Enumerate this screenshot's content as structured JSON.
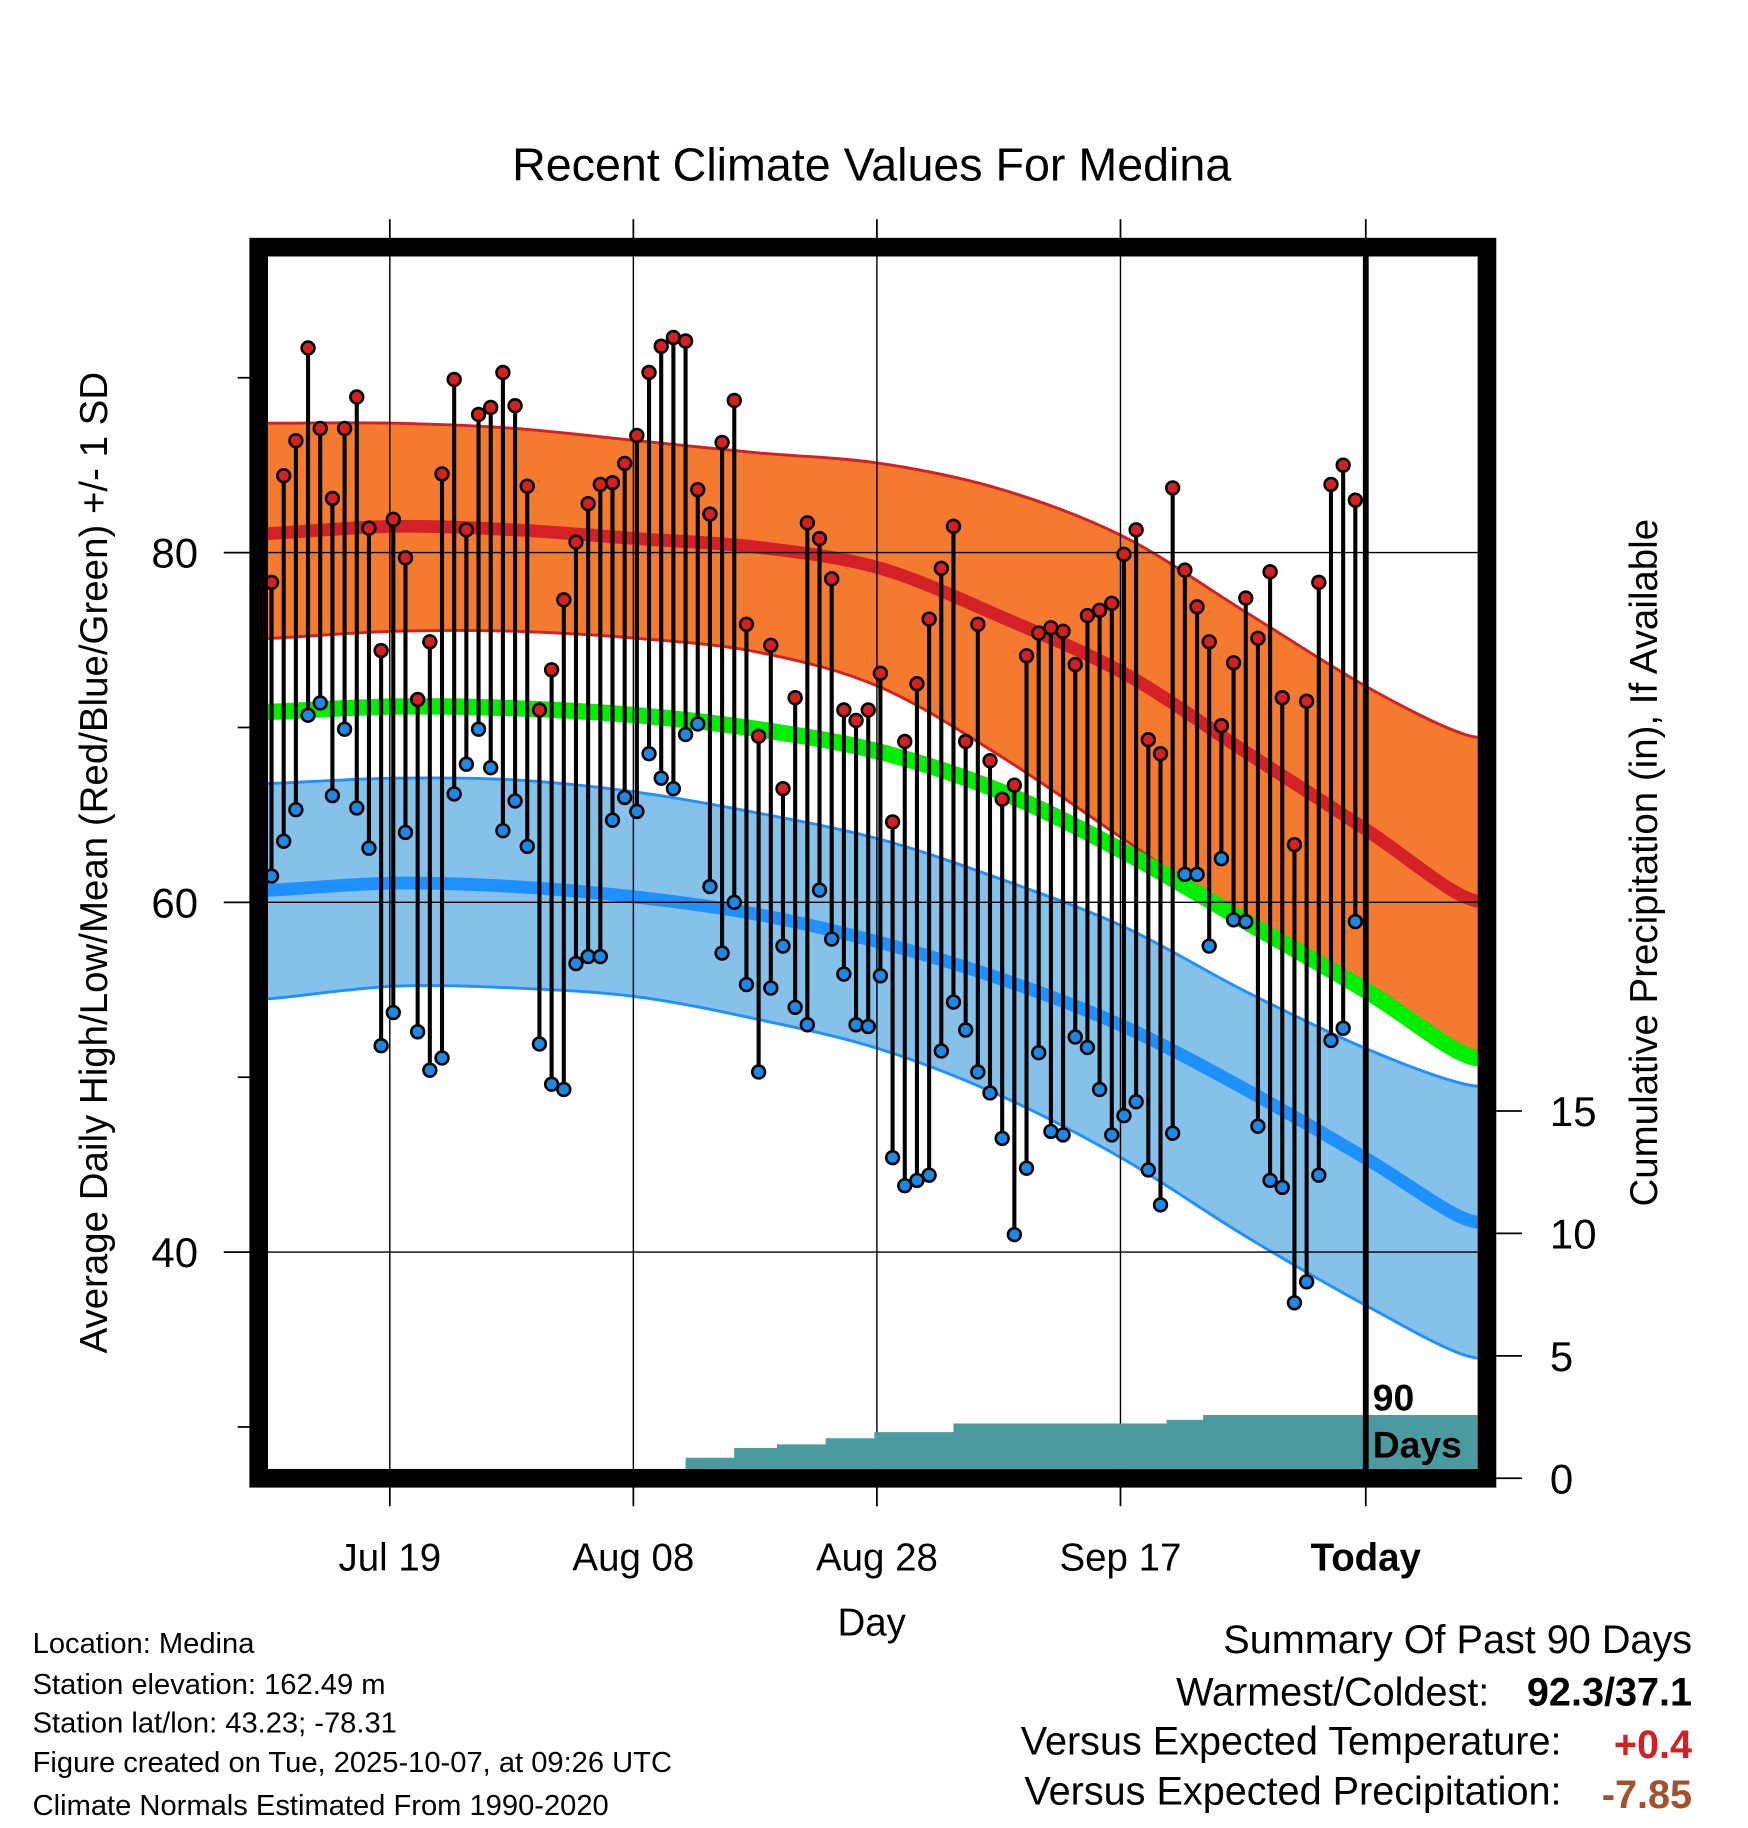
{
  "chart_data": {
    "type": "line",
    "title": "Recent Climate Values For Medina",
    "xlabel": "Day",
    "ylabel": "Average Daily High/Low/Mean (Red/Blue/Green) +/- 1 SD",
    "ylabel_right": "Cumulative Precipitation (in), If Available",
    "ylim": [
      27.6,
      96.9
    ],
    "ylim_right": [
      0,
      15
    ],
    "x_unit": "day index (0 = first of 90 days, 89 = day before Today)",
    "xticks": [
      {
        "day": 10,
        "label": "Jul 19",
        "bold": false
      },
      {
        "day": 30,
        "label": "Aug 08",
        "bold": false
      },
      {
        "day": 50,
        "label": "Aug 28",
        "bold": false
      },
      {
        "day": 70,
        "label": "Sep 17",
        "bold": false
      },
      {
        "day": 90,
        "label": "Today",
        "bold": true
      }
    ],
    "yticks": [
      {
        "value": 80,
        "label": "80"
      },
      {
        "value": 60,
        "label": "60"
      },
      {
        "value": 40,
        "label": "40"
      }
    ],
    "yminor": [
      30,
      50,
      70,
      90
    ],
    "yticks_right": [
      {
        "value": 15,
        "label": "15"
      },
      {
        "value": 10,
        "label": "10"
      },
      {
        "value": 5,
        "label": "5"
      },
      {
        "value": 0,
        "label": "0"
      }
    ],
    "period_label": [
      "90",
      "Days"
    ],
    "grid": true,
    "normals": {
      "days": [
        0,
        10,
        20,
        30,
        40,
        50,
        60,
        70,
        80,
        90,
        98
      ],
      "high_upper": [
        87.4,
        87.4,
        87.1,
        86.4,
        85.7,
        85.1,
        83.6,
        80.9,
        76.6,
        72.3,
        69.6
      ],
      "high_mean": [
        81.1,
        81.5,
        81.3,
        80.8,
        80.3,
        79.1,
        76.3,
        73.1,
        68.6,
        64.1,
        60.3
      ],
      "high_lower": [
        75.1,
        75.5,
        75.5,
        75.1,
        74.3,
        72.3,
        68.3,
        63.6,
        58.9,
        54.9,
        51.6
      ],
      "mean": [
        70.9,
        71.2,
        71.1,
        70.7,
        69.9,
        68.6,
        66.3,
        62.9,
        58.9,
        54.9,
        51.3
      ],
      "low_upper": [
        66.8,
        67.1,
        67.0,
        66.3,
        65.1,
        63.6,
        61.3,
        58.6,
        54.9,
        51.6,
        49.6
      ],
      "low_mean": [
        60.7,
        61.1,
        60.9,
        60.3,
        59.3,
        57.7,
        55.6,
        52.9,
        49.3,
        45.3,
        41.9
      ],
      "low_lower": [
        54.5,
        55.2,
        55.1,
        54.6,
        53.3,
        51.6,
        48.9,
        45.3,
        40.9,
        36.9,
        34.1
      ]
    },
    "series": [
      {
        "name": "Daily High",
        "color": "#d42020",
        "values": [
          78.3,
          84.4,
          86.4,
          91.7,
          87.1,
          83.1,
          87.1,
          88.9,
          81.4,
          74.4,
          81.9,
          79.7,
          71.6,
          74.9,
          84.5,
          89.9,
          81.3,
          87.9,
          88.3,
          90.3,
          88.4,
          83.8,
          71.0,
          73.3,
          77.3,
          80.6,
          82.8,
          83.9,
          84.0,
          85.1,
          86.7,
          90.3,
          91.8,
          92.3,
          92.1,
          83.6,
          82.2,
          86.3,
          88.7,
          75.9,
          69.5,
          74.7,
          66.5,
          71.7,
          81.7,
          80.8,
          78.5,
          71.0,
          70.4,
          71.0,
          73.1,
          64.6,
          69.2,
          72.5,
          76.2,
          79.1,
          81.5,
          69.2,
          75.9,
          68.1,
          65.9,
          66.7,
          74.1,
          75.4,
          75.7,
          75.5,
          73.6,
          76.4,
          76.7,
          77.1,
          79.9,
          81.3,
          69.3,
          68.5,
          83.7,
          79.0,
          76.9,
          74.9,
          70.1,
          73.7,
          77.4,
          75.1,
          78.9,
          71.7,
          63.3,
          71.5,
          78.3,
          83.9,
          85.0,
          83.0
        ]
      },
      {
        "name": "Daily Low",
        "color": "#1e88e5",
        "values": [
          61.5,
          63.5,
          65.3,
          70.7,
          71.4,
          66.1,
          69.9,
          65.4,
          63.1,
          51.8,
          53.7,
          64.0,
          52.6,
          50.4,
          51.1,
          66.2,
          67.9,
          69.9,
          67.7,
          64.1,
          65.8,
          63.2,
          51.9,
          49.6,
          49.3,
          56.5,
          56.9,
          56.9,
          64.7,
          66.0,
          65.2,
          68.5,
          67.1,
          66.5,
          69.6,
          70.2,
          60.9,
          57.1,
          60.0,
          55.3,
          50.3,
          55.1,
          57.5,
          54.0,
          53.0,
          60.7,
          57.9,
          55.9,
          53.0,
          52.9,
          55.8,
          45.4,
          43.8,
          44.1,
          44.4,
          51.5,
          54.3,
          52.7,
          50.3,
          49.1,
          46.5,
          41.0,
          44.8,
          51.4,
          46.9,
          46.7,
          52.3,
          51.7,
          49.3,
          46.7,
          47.8,
          48.6,
          44.7,
          42.7,
          46.8,
          61.6,
          61.6,
          57.5,
          62.5,
          59.0,
          58.9,
          47.2,
          44.1,
          43.7,
          37.1,
          38.3,
          44.4,
          52.1,
          52.8,
          58.9
        ]
      }
    ],
    "precipitation": {
      "type": "step-area",
      "color": "#4a9aa0",
      "steps": [
        {
          "day": 34,
          "value": 0.55
        },
        {
          "day": 38,
          "value": 0.95
        },
        {
          "day": 41.5,
          "value": 1.1
        },
        {
          "day": 45.5,
          "value": 1.35
        },
        {
          "day": 49.5,
          "value": 1.6
        },
        {
          "day": 56,
          "value": 1.95
        },
        {
          "day": 73.5,
          "value": 2.1
        },
        {
          "day": 76.5,
          "value": 2.3
        }
      ]
    },
    "colors": {
      "high_band": "#f47a30",
      "high_line": "#d42027",
      "mean_line": "#00ee00",
      "low_band": "#85c1e9",
      "low_line": "#1e90ff"
    }
  },
  "footer": {
    "location": "Location: Medina",
    "elevation": "Station elevation: 162.49 m",
    "latlon": "Station lat/lon: 43.23; -78.31",
    "created": "Figure created on Tue, 2025-10-07, at 09:26 UTC",
    "normals": "Climate Normals Estimated From 1990-2020"
  },
  "summary": {
    "title": "Summary Of Past 90 Days",
    "warmest_label": "Warmest/Coldest:",
    "warmest_value": "92.3/37.1",
    "temp_label": "Versus Expected Temperature:",
    "temp_value": "+0.4",
    "temp_color": "#d42020",
    "precip_label": "Versus Expected Precipitation:",
    "precip_value": "-7.85",
    "precip_color": "#a0522d"
  }
}
